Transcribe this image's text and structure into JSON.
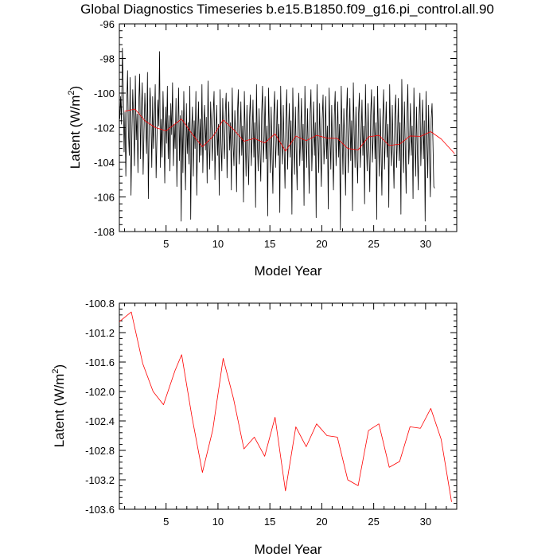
{
  "title": "Global Diagnostics Timeseries b.e15.B1850.f09_g16.pi_control.all.90",
  "chart_data": [
    {
      "type": "line",
      "xlabel": "Model Year",
      "ylabel_main": "Latent (W/m",
      "ylabel_sup": "2",
      "ylabel_close": ")",
      "xlim": [
        0.5,
        33.0
      ],
      "ylim": [
        -108,
        -96
      ],
      "xticks": [
        5,
        10,
        15,
        20,
        25,
        30
      ],
      "yticks": [
        -96,
        -98,
        -100,
        -102,
        -104,
        -106,
        -108
      ],
      "series": [
        {
          "name": "monthly",
          "color": "#000000",
          "x_start": 0.54,
          "x_step": 0.0833333,
          "values": [
            -101.5,
            -100.2,
            -101.8,
            -97.4,
            -99.6,
            -103.4,
            -101.1,
            -104.8,
            -100.9,
            -98.7,
            -102.3,
            -103.6,
            -99.1,
            -105.9,
            -102.4,
            -99.8,
            -101.6,
            -104.2,
            -99.0,
            -102.7,
            -101.2,
            -104.6,
            -100.5,
            -98.9,
            -103.8,
            -101.0,
            -99.4,
            -104.7,
            -102.2,
            -100.0,
            -101.8,
            -103.5,
            -98.8,
            -106.1,
            -102.0,
            -99.7,
            -101.4,
            -104.3,
            -100.2,
            -103.2,
            -101.6,
            -99.5,
            -104.9,
            -102.6,
            -100.4,
            -101.9,
            -97.6,
            -104.3,
            -101.5,
            -103.7,
            -99.9,
            -102.1,
            -105.2,
            -100.8,
            -102.9,
            -99.6,
            -103.8,
            -101.3,
            -104.5,
            -100.6,
            -102.4,
            -99.4,
            -104.2,
            -101.8,
            -103.2,
            -100.3,
            -105.4,
            -102.2,
            -99.7,
            -103.9,
            -101.3,
            -107.4,
            -101.0,
            -104.6,
            -99.9,
            -102.7,
            -105.6,
            -100.6,
            -103.5,
            -101.7,
            -104.1,
            -99.6,
            -107.3,
            -102.3,
            -100.8,
            -104.8,
            -101.6,
            -103.2,
            -99.9,
            -105.9,
            -102.4,
            -100.5,
            -104.0,
            -101.5,
            -103.6,
            -99.5,
            -104.6,
            -102.0,
            -100.7,
            -103.3,
            -101.4,
            -105.2,
            -99.3,
            -102.8,
            -104.4,
            -100.5,
            -102.0,
            -103.9,
            -101.2,
            -99.9,
            -105.0,
            -102.5,
            -100.7,
            -103.6,
            -101.8,
            -105.9,
            -99.8,
            -102.9,
            -104.5,
            -100.3,
            -102.6,
            -103.8,
            -101.1,
            -100.0,
            -104.9,
            -102.3,
            -100.5,
            -103.3,
            -101.7,
            -105.6,
            -99.7,
            -102.9,
            -104.2,
            -101.0,
            -102.5,
            -105.7,
            -101.2,
            -99.8,
            -104.1,
            -102.8,
            -100.5,
            -103.6,
            -101.9,
            -106.3,
            -99.9,
            -102.4,
            -104.8,
            -100.7,
            -103.2,
            -105.3,
            -101.4,
            -100.1,
            -104.2,
            -102.6,
            -100.4,
            -103.7,
            -101.7,
            -106.6,
            -99.5,
            -102.8,
            -104.5,
            -100.9,
            -103.3,
            -105.1,
            -101.2,
            -99.6,
            -104.0,
            -102.5,
            -100.2,
            -103.8,
            -101.9,
            -107.1,
            -99.7,
            -102.3,
            -104.6,
            -100.8,
            -103.5,
            -105.8,
            -101.3,
            -99.9,
            -104.3,
            -102.7,
            -100.4,
            -103.6,
            -101.8,
            -106.9,
            -99.6,
            -102.6,
            -104.1,
            -100.7,
            -103.2,
            -105.5,
            -101.5,
            -99.8,
            -104.4,
            -102.4,
            -100.6,
            -103.7,
            -101.6,
            -107.0,
            -99.7,
            -102.5,
            -104.7,
            -100.8,
            -103.4,
            -105.6,
            -101.4,
            -100.0,
            -104.2,
            -102.7,
            -100.3,
            -103.9,
            -101.8,
            -106.5,
            -99.6,
            -102.4,
            -104.3,
            -100.9,
            -103.3,
            -105.8,
            -101.2,
            -99.8,
            -104.5,
            -102.6,
            -100.5,
            -103.6,
            -101.7,
            -107.2,
            -99.5,
            -102.3,
            -104.6,
            -100.6,
            -103.1,
            -105.4,
            -101.5,
            -100.1,
            -104.1,
            -102.8,
            -100.2,
            -103.8,
            -101.9,
            -106.7,
            -99.7,
            -102.5,
            -104.4,
            -100.7,
            -103.4,
            -105.6,
            -101.3,
            -99.9,
            -104.2,
            -102.5,
            -100.5,
            -103.7,
            -101.8,
            -107.9,
            -99.6,
            -102.2,
            -104.7,
            -100.9,
            -103.0,
            -105.9,
            -101.4,
            -99.7,
            -104.6,
            -102.6,
            -100.3,
            -103.9,
            -101.6,
            -106.8,
            -99.4,
            -102.4,
            -104.3,
            -100.8,
            -103.5,
            -105.2,
            -101.2,
            -100.0,
            -104.3,
            -102.7,
            -100.4,
            -103.6,
            -101.9,
            -106.4,
            -99.5,
            -102.8,
            -104.5,
            -100.6,
            -103.3,
            -105.7,
            -101.3,
            -99.8,
            -104.0,
            -102.4,
            -100.2,
            -103.8,
            -101.7,
            -107.3,
            -99.6,
            -102.3,
            -104.8,
            -100.9,
            -103.2,
            -105.9,
            -101.5,
            -99.8,
            -104.4,
            -102.5,
            -100.5,
            -103.7,
            -101.8,
            -106.6,
            -99.5,
            -102.7,
            -104.2,
            -100.7,
            -103.4,
            -105.5,
            -101.2,
            -100.1,
            -104.3,
            -102.6,
            -100.3,
            -103.9,
            -101.7,
            -107.0,
            -99.2,
            -102.5,
            -104.6,
            -100.5,
            -103.1,
            -105.8,
            -101.4,
            -99.5,
            -104.1,
            -102.8,
            -100.6,
            -103.6,
            -101.9,
            -106.1,
            -99.7,
            -102.4,
            -104.8,
            -100.8,
            -103.3,
            -105.6,
            -101.3,
            -100.0,
            -104.2,
            -102.2,
            -100.4,
            -103.8,
            -101.6,
            -107.4,
            -99.9,
            -102.6,
            -104.9,
            -100.7,
            -103.5,
            -106.0,
            -101.5,
            -100.6,
            -102.8,
            -105.4,
            -105.5
          ]
        },
        {
          "name": "annual mean",
          "color": "#ff0000",
          "x": [
            1.0,
            2.0,
            3.0,
            4.0,
            5.0,
            6.0,
            6.5,
            7.5,
            8.5,
            9.5,
            10.5,
            11.5,
            12.5,
            13.5,
            14.5,
            15.5,
            16.5,
            17.5,
            18.5,
            19.5,
            20.5,
            21.5,
            22.5,
            23.5,
            24.5,
            25.5,
            26.5,
            27.5,
            28.5,
            29.5,
            30.5,
            31.5,
            32.8
          ],
          "values": [
            -101.05,
            -100.92,
            -101.62,
            -102.0,
            -102.18,
            -101.72,
            -101.5,
            -102.35,
            -103.1,
            -102.52,
            -101.55,
            -102.1,
            -102.78,
            -102.62,
            -102.88,
            -102.35,
            -103.35,
            -102.48,
            -102.75,
            -102.44,
            -102.6,
            -102.62,
            -103.2,
            -103.28,
            -102.53,
            -102.44,
            -103.03,
            -102.95,
            -102.48,
            -102.5,
            -102.23,
            -102.65,
            -103.5
          ]
        }
      ]
    },
    {
      "type": "line",
      "xlabel": "Model Year",
      "ylabel_main": "Latent (W/m",
      "ylabel_sup": "2",
      "ylabel_close": ")",
      "xlim": [
        0.5,
        33.0
      ],
      "ylim": [
        -103.6,
        -100.8
      ],
      "xticks": [
        5,
        10,
        15,
        20,
        25,
        30
      ],
      "yticks": [
        -100.8,
        -101.2,
        -101.6,
        -102.0,
        -102.4,
        -102.8,
        -103.2,
        -103.6
      ],
      "ytick_labels": [
        "-100.8",
        "-101.2",
        "-101.6",
        "-102.0",
        "-102.4",
        "-102.8",
        "-103.2",
        "-103.6"
      ],
      "series": [
        {
          "name": "annual mean",
          "color": "#ff0000",
          "x": [
            0.5,
            1.65,
            2.75,
            3.75,
            4.75,
            5.85,
            6.5,
            7.5,
            8.5,
            9.5,
            10.5,
            11.5,
            12.5,
            13.5,
            14.5,
            15.5,
            16.5,
            17.5,
            18.5,
            19.5,
            20.5,
            21.5,
            22.5,
            23.5,
            24.5,
            25.5,
            26.5,
            27.5,
            28.5,
            29.5,
            30.5,
            31.5,
            32.5
          ],
          "values": [
            -101.05,
            -100.92,
            -101.62,
            -102.0,
            -102.18,
            -101.72,
            -101.5,
            -102.35,
            -103.1,
            -102.52,
            -101.55,
            -102.1,
            -102.78,
            -102.62,
            -102.88,
            -102.35,
            -103.35,
            -102.48,
            -102.75,
            -102.44,
            -102.6,
            -102.62,
            -103.2,
            -103.28,
            -102.53,
            -102.44,
            -103.03,
            -102.95,
            -102.48,
            -102.5,
            -102.23,
            -102.65,
            -103.5
          ]
        }
      ]
    }
  ]
}
